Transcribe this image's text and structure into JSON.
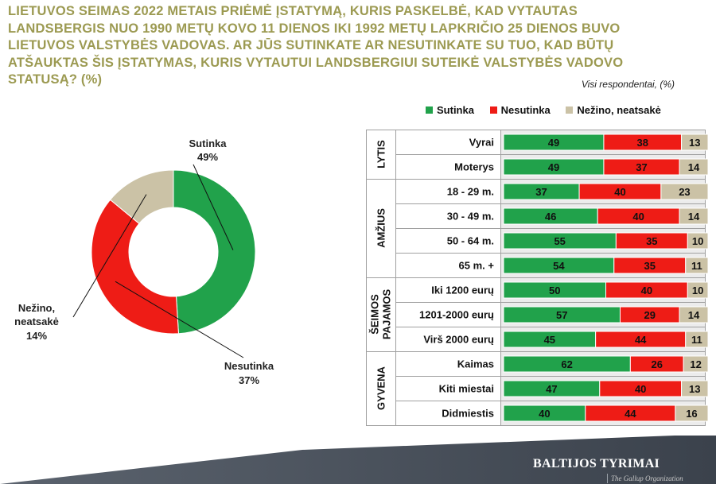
{
  "title": "LIETUVOS SEIMAS 2022 METAIS PRIĖMĖ ĮSTATYMĄ, KURIS PASKELBĖ, KAD VYTAUTAS LANDSBERGIS NUO 1990 METŲ KOVO 11 DIENOS IKI 1992 METŲ LAPKRIČIO 25 DIENOS BUVO LIETUVOS VALSTYBĖS VADOVAS. AR JŪS SUTINKATE AR NESUTINKATE SU TUO, KAD BŪTŲ ATŠAUKTAS ŠIS ĮSTATYMAS, KURIS VYTAUTUI LANDSBERGIUI SUTEIKĖ VALSTYBĖS VADOVO STATUSĄ? (%)",
  "subtitle": "Visi respondentai, (%)",
  "colors": {
    "sutinka": "#21a24b",
    "nesutinka": "#ee1c16",
    "nezino": "#cbc2a6"
  },
  "footer": {
    "brand": "BALTIJOS TYRIMAI",
    "sub": "The Gallup Organization"
  },
  "chart_data": [
    {
      "type": "pie",
      "slices": [
        {
          "name": "Sutinka",
          "value": 49,
          "label": "49%"
        },
        {
          "name": "Nesutinka",
          "value": 37,
          "label": "37%"
        },
        {
          "name": "Nežino, neatsakė",
          "value": 14,
          "label": "14%"
        }
      ]
    },
    {
      "type": "bar",
      "stacked": true,
      "orientation": "horizontal",
      "legend": [
        "Sutinka",
        "Nesutinka",
        "Nežino, neatsakė"
      ],
      "legend_position": "top",
      "groups": [
        {
          "name": "LYTIS",
          "rows": [
            {
              "label": "Vyrai",
              "values": [
                49,
                38,
                13
              ]
            },
            {
              "label": "Moterys",
              "values": [
                49,
                37,
                14
              ]
            }
          ]
        },
        {
          "name": "AMŽIUS",
          "rows": [
            {
              "label": "18 - 29 m.",
              "values": [
                37,
                40,
                23
              ]
            },
            {
              "label": "30 - 49 m.",
              "values": [
                46,
                40,
                14
              ]
            },
            {
              "label": "50 - 64 m.",
              "values": [
                55,
                35,
                10
              ]
            },
            {
              "label": "65 m. +",
              "values": [
                54,
                35,
                11
              ]
            }
          ]
        },
        {
          "name": "ŠEIMOS PAJAMOS",
          "rows": [
            {
              "label": "Iki 1200 eurų",
              "values": [
                50,
                40,
                10
              ]
            },
            {
              "label": "1201-2000 eurų",
              "values": [
                57,
                29,
                14
              ]
            },
            {
              "label": "Virš 2000 eurų",
              "values": [
                45,
                44,
                11
              ]
            }
          ]
        },
        {
          "name": "GYVENA",
          "rows": [
            {
              "label": "Kaimas",
              "values": [
                62,
                26,
                12
              ]
            },
            {
              "label": "Kiti miestai",
              "values": [
                47,
                40,
                13
              ]
            },
            {
              "label": "Didmiestis",
              "values": [
                40,
                44,
                16
              ]
            }
          ]
        }
      ]
    }
  ]
}
